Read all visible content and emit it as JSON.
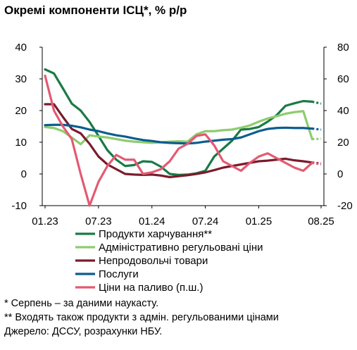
{
  "title": "Окремі компоненти ІСЦ*, % р/р",
  "notes": [
    "* Серпень – за даними наукасту.",
    "** Входять також продукти з адмін. регульованими цінами",
    "Джерело: ДССУ, розрахунки НБУ."
  ],
  "chart_data": {
    "type": "line",
    "x": [
      "01.23",
      "02.23",
      "03.23",
      "04.23",
      "05.23",
      "06.23",
      "07.23",
      "08.23",
      "09.23",
      "10.23",
      "11.23",
      "12.23",
      "01.24",
      "02.24",
      "03.24",
      "04.24",
      "05.24",
      "06.24",
      "07.24",
      "08.24",
      "09.24",
      "10.24",
      "11.24",
      "12.24",
      "01.25",
      "02.25",
      "03.25",
      "04.25",
      "05.25",
      "06.25",
      "07.25",
      "08.25"
    ],
    "x_tick_labels": [
      "01.23",
      "07.23",
      "01.24",
      "07.24",
      "01.25",
      "08.25"
    ],
    "y_left": {
      "ticks": [
        -10,
        0,
        10,
        20,
        30,
        40
      ],
      "ylim": [
        -10,
        40
      ]
    },
    "y_right": {
      "ticks": [
        -20,
        0,
        20,
        40,
        60,
        80
      ],
      "ylim": [
        -20,
        80
      ]
    },
    "grid": false,
    "legend_position": "bottom",
    "series": [
      {
        "name": "Продукти харчування**",
        "color": "#1a7a45",
        "axis": "left",
        "last_point_dashed": true,
        "values": [
          33,
          31.7,
          27,
          22.2,
          20,
          16.4,
          12,
          7.5,
          4.5,
          2.5,
          2.8,
          4,
          3.8,
          2.3,
          0,
          -0.3,
          -0.2,
          0.2,
          1,
          5.5,
          8,
          10.5,
          14,
          14.2,
          14.8,
          16.5,
          18.5,
          21.5,
          22.3,
          23,
          22.8,
          22.2
        ]
      },
      {
        "name": "Адміністративно регульовані ціни",
        "color": "#8ecc6e",
        "axis": "left",
        "last_point_dashed": true,
        "values": [
          14.8,
          14.5,
          13.5,
          11.5,
          9.4,
          12.2,
          11.8,
          11.5,
          11,
          10.5,
          10.2,
          10,
          9.8,
          10,
          10.2,
          10.3,
          10.2,
          12.5,
          13.5,
          13.5,
          13.8,
          14,
          14.6,
          15.3,
          16.5,
          17.5,
          18.2,
          19,
          19.5,
          19.8,
          11,
          11.1
        ]
      },
      {
        "name": "Непродовольчі товари",
        "color": "#7a1b2c",
        "axis": "left",
        "last_point_dashed": true,
        "values": [
          22,
          22,
          18,
          14.2,
          12.8,
          9.5,
          5.5,
          3,
          1.5,
          0,
          -0.2,
          -0.3,
          -0.2,
          -0.5,
          -1,
          -0.7,
          -0.4,
          0,
          0.5,
          1.2,
          2,
          2.5,
          3,
          3.5,
          4,
          4.2,
          4.5,
          4.8,
          4.3,
          4,
          3.6,
          3.3
        ]
      },
      {
        "name": "Послуги",
        "color": "#0b5d8e",
        "axis": "left",
        "last_point_dashed": true,
        "values": [
          15.4,
          15.5,
          15.5,
          15.2,
          14.7,
          14,
          13.5,
          12.8,
          12.2,
          11.8,
          11.2,
          10.7,
          10.4,
          10,
          9.8,
          9.7,
          9.6,
          9.8,
          10.2,
          10.5,
          10.8,
          11,
          11.5,
          12.5,
          13.5,
          14.2,
          14.5,
          14.6,
          14.5,
          14.5,
          14.3,
          14
        ]
      },
      {
        "name": "Ціни на паливо (п.ш.)",
        "color": "#e25a72",
        "axis": "right",
        "last_point_dashed": true,
        "values": [
          62,
          40,
          30,
          22,
          0,
          -20,
          -5,
          5,
          12,
          9,
          9,
          0,
          1,
          3,
          8,
          16,
          19,
          24,
          25,
          18,
          8,
          5,
          2,
          7,
          11,
          13,
          10,
          7,
          4,
          2,
          7,
          6
        ]
      }
    ]
  }
}
